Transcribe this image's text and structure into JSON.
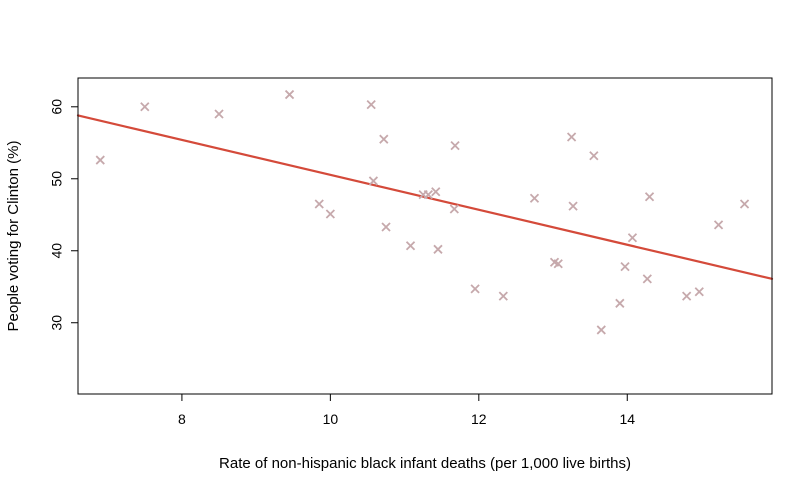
{
  "chart_data": {
    "type": "scatter",
    "title": "",
    "xlabel": "Rate of non-hispanic black infant deaths (per 1,000 live births)",
    "ylabel": "People voting for Clinton (%)",
    "xlim": [
      6.6,
      15.95
    ],
    "ylim": [
      20.1,
      64.0
    ],
    "x_ticks": [
      8,
      10,
      12,
      14
    ],
    "y_ticks": [
      30,
      40,
      50,
      60
    ],
    "grid": false,
    "legend": "none",
    "marker": "x",
    "marker_color": "#c6a9ac",
    "points": [
      {
        "x": 6.9,
        "y": 52.6
      },
      {
        "x": 7.5,
        "y": 60.0
      },
      {
        "x": 8.5,
        "y": 59.0
      },
      {
        "x": 9.45,
        "y": 61.7
      },
      {
        "x": 9.85,
        "y": 46.5
      },
      {
        "x": 10.0,
        "y": 45.1
      },
      {
        "x": 10.55,
        "y": 60.3
      },
      {
        "x": 10.58,
        "y": 49.7
      },
      {
        "x": 10.72,
        "y": 55.5
      },
      {
        "x": 10.75,
        "y": 43.3
      },
      {
        "x": 11.08,
        "y": 40.7
      },
      {
        "x": 11.25,
        "y": 47.8
      },
      {
        "x": 11.32,
        "y": 47.8
      },
      {
        "x": 11.42,
        "y": 48.2
      },
      {
        "x": 11.45,
        "y": 40.2
      },
      {
        "x": 11.67,
        "y": 45.8
      },
      {
        "x": 11.68,
        "y": 54.6
      },
      {
        "x": 11.95,
        "y": 34.7
      },
      {
        "x": 12.33,
        "y": 33.7
      },
      {
        "x": 12.75,
        "y": 47.3
      },
      {
        "x": 13.02,
        "y": 38.4
      },
      {
        "x": 13.07,
        "y": 38.2
      },
      {
        "x": 13.25,
        "y": 55.8
      },
      {
        "x": 13.27,
        "y": 46.2
      },
      {
        "x": 13.55,
        "y": 53.2
      },
      {
        "x": 13.65,
        "y": 29.0
      },
      {
        "x": 13.9,
        "y": 32.7
      },
      {
        "x": 13.97,
        "y": 37.8
      },
      {
        "x": 14.07,
        "y": 41.8
      },
      {
        "x": 14.27,
        "y": 36.1
      },
      {
        "x": 14.3,
        "y": 47.5
      },
      {
        "x": 14.8,
        "y": 33.7
      },
      {
        "x": 14.97,
        "y": 34.3
      },
      {
        "x": 15.23,
        "y": 43.6
      },
      {
        "x": 15.58,
        "y": 46.5
      }
    ],
    "fit_line": {
      "color": "#d44a3a",
      "from": {
        "x": 6.6,
        "y": 58.8
      },
      "to": {
        "x": 15.95,
        "y": 36.1
      }
    }
  }
}
